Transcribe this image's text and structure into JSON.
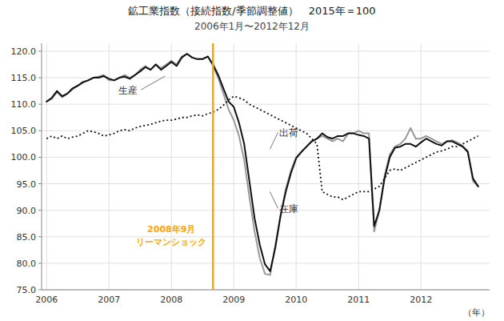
{
  "chart_data": {
    "type": "line",
    "title": "鉱工業指数（接続指数/季節調整値）　2015年＝100",
    "subtitle": "2006年1月〜2012年12月",
    "x_label": "（年）",
    "x": [
      2006,
      2006.0833333333333,
      2006.1666666666667,
      2006.25,
      2006.3333333333333,
      2006.4166666666667,
      2006.5,
      2006.5833333333333,
      2006.6666666666667,
      2006.75,
      2006.8333333333333,
      2006.9166666666667,
      2007,
      2007.0833333333333,
      2007.1666666666667,
      2007.25,
      2007.3333333333333,
      2007.4166666666667,
      2007.5,
      2007.5833333333333,
      2007.6666666666667,
      2007.75,
      2007.8333333333333,
      2007.9166666666667,
      2008,
      2008.0833333333333,
      2008.1666666666667,
      2008.25,
      2008.3333333333333,
      2008.4166666666667,
      2008.5,
      2008.5833333333333,
      2008.6666666666667,
      2008.75,
      2008.8333333333333,
      2008.9166666666667,
      2009,
      2009.0833333333333,
      2009.1666666666667,
      2009.25,
      2009.3333333333333,
      2009.4166666666667,
      2009.5,
      2009.5833333333333,
      2009.6666666666667,
      2009.75,
      2009.8333333333333,
      2009.9166666666667,
      2010,
      2010.0833333333333,
      2010.1666666666667,
      2010.25,
      2010.3333333333333,
      2010.4166666666667,
      2010.5,
      2010.5833333333333,
      2010.6666666666667,
      2010.75,
      2010.8333333333333,
      2010.9166666666667,
      2011,
      2011.0833333333333,
      2011.1666666666667,
      2011.25,
      2011.3333333333333,
      2011.4166666666667,
      2011.5,
      2011.5833333333333,
      2011.6666666666667,
      2011.75,
      2011.8333333333333,
      2011.9166666666667,
      2012,
      2012.0833333333333,
      2012.1666666666667,
      2012.25,
      2012.3333333333333,
      2012.4166666666667,
      2012.5,
      2012.5833333333333,
      2012.6666666666667,
      2012.75,
      2012.8333333333333,
      2012.9166666666667
    ],
    "xlim": [
      2005.92,
      2013.1
    ],
    "xticks": [
      2006,
      2007,
      2008,
      2009,
      2010,
      2011,
      2012
    ],
    "ylim": [
      75.0,
      121.5
    ],
    "yticks": [
      {
        "value": 75.0,
        "label": "75.0"
      },
      {
        "value": 80.0,
        "label": "80.0"
      },
      {
        "value": 85.0,
        "label": "85.0"
      },
      {
        "value": 90.0,
        "label": "90.0"
      },
      {
        "value": 95.0,
        "label": "95.0"
      },
      {
        "value": 100.0,
        "label": "100.0"
      },
      {
        "value": 105.0,
        "label": "105.0"
      },
      {
        "value": 110.0,
        "label": "110.0"
      },
      {
        "value": 115.0,
        "label": "115.0"
      },
      {
        "value": 120.0,
        "label": "120.0"
      }
    ],
    "grid": true,
    "series": [
      {
        "name": "出荷",
        "color": "#999999",
        "line_style": "solid",
        "label_point": {
          "x": 2009.58,
          "y": 101.5
        },
        "values": [
          110.5,
          111.0,
          112.3,
          111.3,
          112.0,
          112.8,
          113.5,
          114.0,
          114.5,
          115.0,
          115.2,
          115.5,
          114.5,
          114.5,
          115.0,
          115.5,
          115.0,
          115.5,
          116.5,
          117.2,
          116.5,
          117.5,
          116.8,
          117.5,
          118.2,
          117.5,
          119.0,
          119.5,
          118.8,
          118.5,
          118.5,
          119.0,
          117.2,
          115.0,
          112.0,
          109.0,
          107.0,
          104.0,
          99.5,
          92.5,
          86.0,
          81.0,
          78.0,
          77.8,
          83.5,
          89.0,
          94.0,
          97.5,
          100.0,
          101.0,
          102.0,
          103.0,
          103.5,
          104.0,
          103.5,
          103.0,
          103.5,
          103.0,
          104.5,
          104.5,
          105.0,
          104.5,
          104.5,
          86.0,
          90.0,
          96.5,
          100.5,
          102.0,
          102.5,
          103.5,
          105.5,
          103.5,
          103.5,
          104.0,
          103.5,
          103.0,
          102.5,
          103.0,
          103.2,
          102.8,
          102.2,
          101.2,
          95.5,
          94.5
        ]
      },
      {
        "name": "生産",
        "color": "#111111",
        "line_style": "solid",
        "label_point": {
          "x": 2007.9,
          "y": 115.3
        },
        "values": [
          110.5,
          111.2,
          112.5,
          111.5,
          112.0,
          113.0,
          113.5,
          114.2,
          114.5,
          115.0,
          115.0,
          115.3,
          114.8,
          114.5,
          115.0,
          115.2,
          114.8,
          115.5,
          116.2,
          117.0,
          116.5,
          117.5,
          116.5,
          117.2,
          118.0,
          117.2,
          118.8,
          119.5,
          118.8,
          118.5,
          118.5,
          119.0,
          117.5,
          115.5,
          113.0,
          110.5,
          109.5,
          106.5,
          102.5,
          95.5,
          88.5,
          83.5,
          79.8,
          78.5,
          83.0,
          89.0,
          93.5,
          97.0,
          99.8,
          101.0,
          102.0,
          103.0,
          103.5,
          104.5,
          103.8,
          103.5,
          104.0,
          104.0,
          104.5,
          104.5,
          104.2,
          104.0,
          103.5,
          87.0,
          90.0,
          96.0,
          100.0,
          101.8,
          102.0,
          102.5,
          102.5,
          102.0,
          102.8,
          103.5,
          103.0,
          102.5,
          102.2,
          103.0,
          103.0,
          102.5,
          102.0,
          101.0,
          96.0,
          94.5
        ]
      },
      {
        "name": "在庫",
        "color": "#111111",
        "line_style": "dotted",
        "label_point": {
          "x": 2009.58,
          "y": 93.5
        },
        "values": [
          103.5,
          104.0,
          103.5,
          104.0,
          103.5,
          103.8,
          104.0,
          104.5,
          105.0,
          104.8,
          104.5,
          104.0,
          104.2,
          104.5,
          105.0,
          105.2,
          105.0,
          105.5,
          105.8,
          106.0,
          106.2,
          106.5,
          106.8,
          107.0,
          107.0,
          107.2,
          107.5,
          107.5,
          107.8,
          108.0,
          107.8,
          108.2,
          108.5,
          109.0,
          109.8,
          110.8,
          111.5,
          111.2,
          110.8,
          110.0,
          109.5,
          109.0,
          108.5,
          108.0,
          107.5,
          107.0,
          106.5,
          106.0,
          105.5,
          105.0,
          104.5,
          103.5,
          102.5,
          93.5,
          93.0,
          92.5,
          92.5,
          92.0,
          92.5,
          93.0,
          93.5,
          93.5,
          93.5,
          94.0,
          94.5,
          96.0,
          97.5,
          97.8,
          97.5,
          98.0,
          98.5,
          99.0,
          99.5,
          100.0,
          100.5,
          101.0,
          101.2,
          101.5,
          102.0,
          102.0,
          102.5,
          103.0,
          103.5,
          104.0
        ]
      }
    ],
    "vlines": [
      {
        "x": 2008.667,
        "color": "#FFA500",
        "label": [
          "2008年9月",
          "リーマンショック"
        ]
      }
    ]
  }
}
